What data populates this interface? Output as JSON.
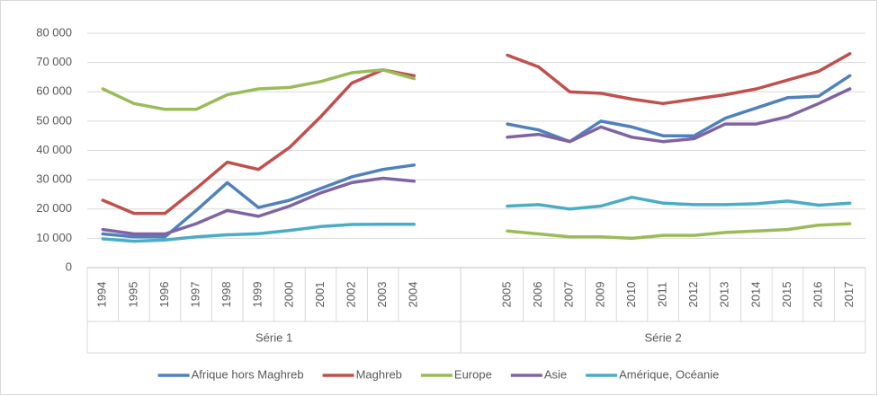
{
  "chart_data": {
    "type": "line",
    "categories": [
      "1994",
      "1995",
      "1996",
      "1997",
      "1998",
      "1999",
      "2000",
      "2001",
      "2002",
      "2003",
      "2004",
      null,
      null,
      "2005",
      "2006",
      "2007",
      "2009",
      "2010",
      "2011",
      "2012",
      "2013",
      "2014",
      "2015",
      "2016",
      "2017"
    ],
    "category_groups": [
      "Série 1",
      "Série 2"
    ],
    "series": [
      {
        "name": "Afrique hors Maghreb",
        "color": "#4f81bd",
        "values": [
          11500,
          10500,
          10500,
          19500,
          29000,
          20500,
          23000,
          27000,
          31000,
          33500,
          35000,
          null,
          null,
          49000,
          47000,
          43000,
          50000,
          48000,
          45000,
          45000,
          51000,
          54500,
          58000,
          58500,
          65500
        ]
      },
      {
        "name": "Maghreb",
        "color": "#c0504d",
        "values": [
          23000,
          18500,
          18500,
          27000,
          36000,
          33500,
          41000,
          51500,
          63000,
          67500,
          65500,
          null,
          null,
          72500,
          68500,
          60000,
          59500,
          57500,
          56000,
          57500,
          59000,
          61000,
          64000,
          67000,
          73000
        ]
      },
      {
        "name": "Europe",
        "color": "#9bbb59",
        "values": [
          61000,
          56000,
          54000,
          54000,
          59000,
          61000,
          61500,
          63500,
          66500,
          67500,
          64500,
          null,
          null,
          12500,
          11500,
          10500,
          10500,
          10000,
          11000,
          11000,
          12000,
          12500,
          13000,
          14500,
          15000
        ]
      },
      {
        "name": "Asie",
        "color": "#8064a2",
        "values": [
          13000,
          11500,
          11500,
          15000,
          19500,
          17500,
          21000,
          25500,
          29000,
          30500,
          29500,
          null,
          null,
          44500,
          45500,
          43000,
          48000,
          44500,
          43000,
          44000,
          49000,
          49000,
          51500,
          56000,
          61000
        ]
      },
      {
        "name": "Amérique, Océanie",
        "color": "#4bacc6",
        "values": [
          9800,
          9000,
          9400,
          10500,
          11200,
          11600,
          12700,
          14000,
          14700,
          14800,
          14800,
          null,
          null,
          21000,
          21500,
          20000,
          21000,
          24000,
          22000,
          21500,
          21500,
          21800,
          22700,
          21300,
          22000
        ]
      }
    ],
    "ylim": [
      0,
      80000
    ],
    "yticks": [
      0,
      {
        "value": 10000,
        "label": "10 000"
      },
      {
        "value": 20000,
        "label": "20 000"
      },
      {
        "value": 30000,
        "label": "30 000"
      },
      {
        "value": 40000,
        "label": "40 000"
      },
      {
        "value": 50000,
        "label": "50 000"
      },
      {
        "value": 60000,
        "label": "60 000"
      },
      {
        "value": 70000,
        "label": "70 000"
      },
      {
        "value": 80000,
        "label": "80 000"
      }
    ],
    "grid": true,
    "legend": "bottom"
  }
}
